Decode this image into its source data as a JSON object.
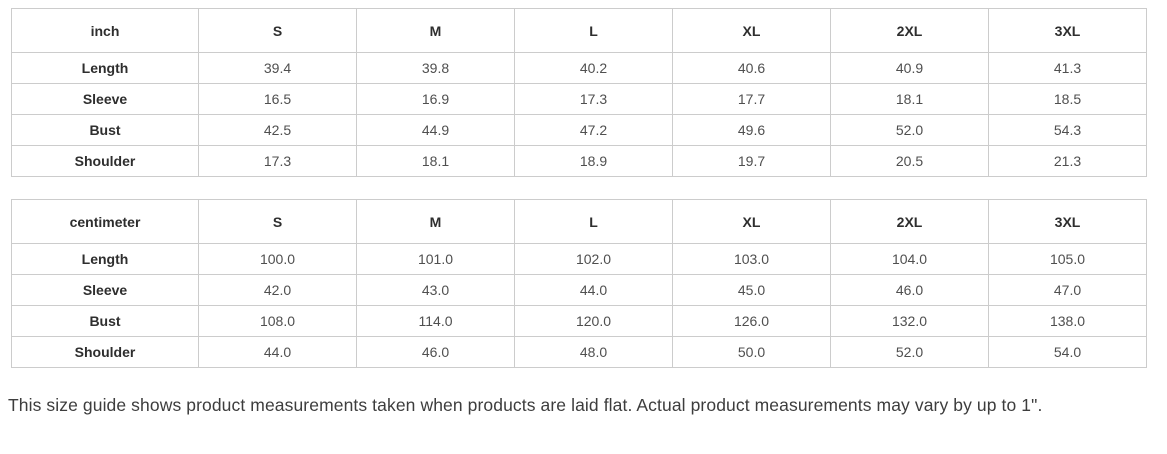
{
  "colors": {
    "background": "#ffffff",
    "table_border": "#cccccc",
    "header_text": "#2e2e2e",
    "value_text": "#4f4f4f",
    "note_text": "#3d3d3d"
  },
  "tables": [
    {
      "unit": "inch",
      "columns": [
        "S",
        "M",
        "L",
        "XL",
        "2XL",
        "3XL"
      ],
      "rows": [
        {
          "label": "Length",
          "values": [
            "39.4",
            "39.8",
            "40.2",
            "40.6",
            "40.9",
            "41.3"
          ]
        },
        {
          "label": "Sleeve",
          "values": [
            "16.5",
            "16.9",
            "17.3",
            "17.7",
            "18.1",
            "18.5"
          ]
        },
        {
          "label": "Bust",
          "values": [
            "42.5",
            "44.9",
            "47.2",
            "49.6",
            "52.0",
            "54.3"
          ]
        },
        {
          "label": "Shoulder",
          "values": [
            "17.3",
            "18.1",
            "18.9",
            "19.7",
            "20.5",
            "21.3"
          ]
        }
      ]
    },
    {
      "unit": "centimeter",
      "columns": [
        "S",
        "M",
        "L",
        "XL",
        "2XL",
        "3XL"
      ],
      "rows": [
        {
          "label": "Length",
          "values": [
            "100.0",
            "101.0",
            "102.0",
            "103.0",
            "104.0",
            "105.0"
          ]
        },
        {
          "label": "Sleeve",
          "values": [
            "42.0",
            "43.0",
            "44.0",
            "45.0",
            "46.0",
            "47.0"
          ]
        },
        {
          "label": "Bust",
          "values": [
            "108.0",
            "114.0",
            "120.0",
            "126.0",
            "132.0",
            "138.0"
          ]
        },
        {
          "label": "Shoulder",
          "values": [
            "44.0",
            "46.0",
            "48.0",
            "50.0",
            "52.0",
            "54.0"
          ]
        }
      ]
    }
  ],
  "footer_note": "This size guide shows product measurements taken when products are laid flat. Actual product measurements may vary by up to 1\"."
}
